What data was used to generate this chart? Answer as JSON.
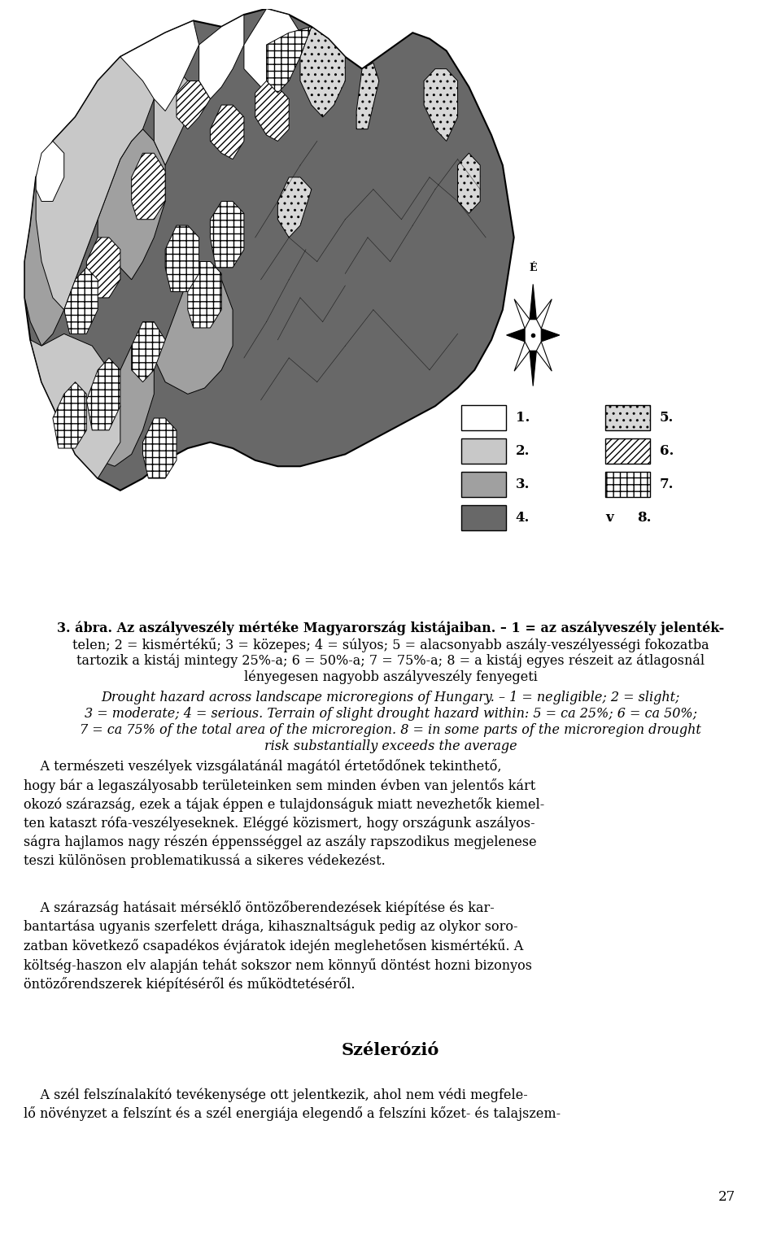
{
  "caption_line1_bold": "3. ábra.",
  "caption_line1_rest": " Az aszályveszély mértéke Magyarország kistájaiban. – 1 = az aszályveszély jelenték-",
  "caption_line2": "telen; 2 = kismértékű; 3 = közepes; 4 = súlyos; 5 = alacsonyabb aszály-veszélyességi fokozatba",
  "caption_line3": "tartozik a kistáj mintegy 25%-a; 6 = 50%-a; 7 = 75%-a; 8 = a kistáj egyes részeit az átlagosnál",
  "caption_line4": "lényegesen nagyobb aszályveszély fenyegeti",
  "caption_en_line1": "Drought hazard across landscape microregions of Hungary. – 1 = negligible; 2 = slight;",
  "caption_en_line2": "3 = moderate; 4 = serious. Terrain of slight drought hazard within: 5 = ca 25%; 6 = ca 50%;",
  "caption_en_line3": "7 = ca 75% of the total area of the microregion. 8 = in some parts of the microregion drought",
  "caption_en_line4": "risk substantially exceeds the average",
  "body1_indent": "    A természeti veszélyek vizsgálatánál magától értetődőnek tekinthető,",
  "body1_rest": "hogy bár a legaszályosabb területeinken sem minden évben van jelentős kárt\nokozó szárazság, ezek a tájak éppen e tulajdonságuk miatt nevezhetők kiemel-\nten kataszt rófa-veszélyeseknek. Eléggé közismert, hogy országunk aszályos-\nságra hajlamos nagy részén éppensséggel az aszály rapszodikus megjelenesse\nteszi különösen problematikussá a sikeres védekezést.",
  "body2_indent": "    A szárazság hatásait mérséklő öntözőberendezések kiépítése és kar-",
  "body2_rest": "bantartása ugyanis szerfelett drága, kihasznaltságuk pedig az olykor soro-\nzatban következő csapadékos évjáratok idején meglehetősen kismértékű. A\nköltség-haszon elv alapján tehát sokszor nem könnyű döntést hozni bizonyos\nöntözőrendszerek kiépítéséről és működtetéséről.",
  "section_title": "Szélerózió",
  "section_p1_indent": "    A szél felszínalakító tevékenysége ott jelentkezik, ahol nem védi megfele-",
  "section_p1_rest": "lő növényzet a felszínt és a szél energiája elegendő a felszíni kőzet- és talajszem-",
  "page_number": "27",
  "bg_color": "#ffffff",
  "colors": {
    "level1": "#ffffff",
    "level2": "#c8c8c8",
    "level3": "#a0a0a0",
    "level4": "#686868",
    "level5_base": "#d8d8d8",
    "level6_base": "#ffffff",
    "level7_base": "#ffffff",
    "outline": "#000000"
  },
  "compass_label": "É"
}
